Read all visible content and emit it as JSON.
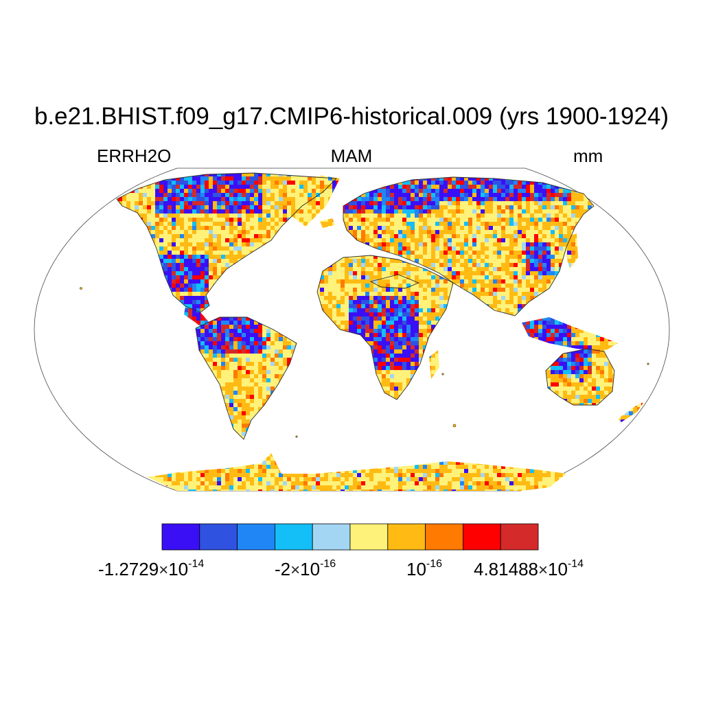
{
  "title": "b.e21.BHIST.f09_g17.CMIP6-historical.009 (yrs 1900-1924)",
  "subtitle": {
    "left": "ERRH2O",
    "center": "MAM",
    "right": "mm"
  },
  "colorbar": {
    "colors": [
      "#3b0ff5",
      "#2f52e0",
      "#2186f5",
      "#14bef7",
      "#a3d6f2",
      "#fff27a",
      "#ffbb14",
      "#ff7a00",
      "#ff0000",
      "#d42a2a"
    ],
    "tick_labels": [
      {
        "mantissa": "-1.2729",
        "times": "×",
        "base": "10",
        "exponent": "-14"
      },
      {
        "mantissa": "-2",
        "times": "×",
        "base": "10",
        "exponent": "-16"
      },
      {
        "mantissa": "",
        "times": "",
        "base": "10",
        "exponent": "-16"
      },
      {
        "mantissa": "4.81488",
        "times": "×",
        "base": "10",
        "exponent": "-14"
      }
    ]
  },
  "map": {
    "projection": "Robinson",
    "land_outline_color": "#2a2a2a",
    "ocean_color": "#ffffff"
  }
}
